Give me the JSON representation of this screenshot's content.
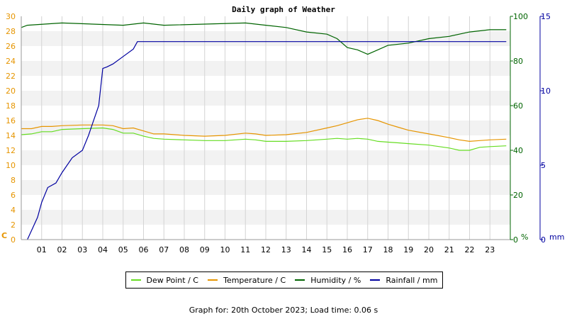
{
  "chart_data": {
    "type": "line",
    "title": "Daily graph of Weather",
    "x_ticks": [
      "01",
      "02",
      "03",
      "04",
      "05",
      "06",
      "07",
      "08",
      "09",
      "10",
      "11",
      "12",
      "13",
      "14",
      "15",
      "16",
      "17",
      "18",
      "19",
      "20",
      "21",
      "22",
      "23"
    ],
    "xlim": [
      0,
      24
    ],
    "axes": {
      "left": {
        "unit": "C",
        "range": [
          0,
          30
        ],
        "ticks": [
          0,
          2,
          4,
          6,
          8,
          10,
          12,
          14,
          16,
          18,
          20,
          22,
          24,
          26,
          28,
          30
        ],
        "color": "#e69500"
      },
      "right1": {
        "unit": "%",
        "range": [
          0,
          100
        ],
        "ticks": [
          0,
          20,
          40,
          60,
          80,
          100
        ],
        "color": "#006400"
      },
      "right2": {
        "unit": "mm",
        "range": [
          0,
          15
        ],
        "ticks": [
          0,
          5,
          10,
          15
        ],
        "color": "#0000a0"
      }
    },
    "grid": true,
    "legend_position": "bottom",
    "series": [
      {
        "name": "Dew Point / C",
        "axis": "left",
        "color": "#66dd22",
        "points": [
          [
            0,
            14.1
          ],
          [
            0.5,
            14.2
          ],
          [
            1,
            14.5
          ],
          [
            1.5,
            14.5
          ],
          [
            2,
            14.8
          ],
          [
            3,
            14.9
          ],
          [
            4,
            15.0
          ],
          [
            4.5,
            14.8
          ],
          [
            5,
            14.3
          ],
          [
            5.5,
            14.3
          ],
          [
            6,
            13.9
          ],
          [
            6.5,
            13.6
          ],
          [
            7,
            13.5
          ],
          [
            8,
            13.4
          ],
          [
            9,
            13.3
          ],
          [
            10,
            13.3
          ],
          [
            11,
            13.5
          ],
          [
            11.5,
            13.4
          ],
          [
            12,
            13.2
          ],
          [
            13,
            13.2
          ],
          [
            14,
            13.3
          ],
          [
            15,
            13.5
          ],
          [
            15.5,
            13.6
          ],
          [
            16,
            13.5
          ],
          [
            16.5,
            13.6
          ],
          [
            17,
            13.5
          ],
          [
            17.5,
            13.2
          ],
          [
            18,
            13.1
          ],
          [
            18.5,
            13.0
          ],
          [
            19,
            12.9
          ],
          [
            20,
            12.7
          ],
          [
            21,
            12.3
          ],
          [
            21.5,
            12.0
          ],
          [
            22,
            12.0
          ],
          [
            22.5,
            12.4
          ],
          [
            23,
            12.5
          ],
          [
            23.8,
            12.6
          ]
        ]
      },
      {
        "name": "Temperature / C",
        "axis": "left",
        "color": "#e69500",
        "points": [
          [
            0,
            14.9
          ],
          [
            0.5,
            14.9
          ],
          [
            1,
            15.2
          ],
          [
            1.5,
            15.2
          ],
          [
            2,
            15.3
          ],
          [
            3,
            15.4
          ],
          [
            4,
            15.4
          ],
          [
            4.5,
            15.3
          ],
          [
            5,
            14.9
          ],
          [
            5.5,
            15.0
          ],
          [
            6,
            14.6
          ],
          [
            6.5,
            14.2
          ],
          [
            7,
            14.2
          ],
          [
            8,
            14.0
          ],
          [
            9,
            13.9
          ],
          [
            10,
            14.0
          ],
          [
            11,
            14.3
          ],
          [
            11.5,
            14.2
          ],
          [
            12,
            14.0
          ],
          [
            13,
            14.1
          ],
          [
            14,
            14.4
          ],
          [
            15,
            15.0
          ],
          [
            15.5,
            15.3
          ],
          [
            16,
            15.7
          ],
          [
            16.5,
            16.1
          ],
          [
            17,
            16.3
          ],
          [
            17.5,
            16.0
          ],
          [
            18,
            15.5
          ],
          [
            18.5,
            15.1
          ],
          [
            19,
            14.7
          ],
          [
            20,
            14.2
          ],
          [
            21,
            13.7
          ],
          [
            21.5,
            13.4
          ],
          [
            22,
            13.2
          ],
          [
            22.5,
            13.3
          ],
          [
            23,
            13.4
          ],
          [
            23.8,
            13.5
          ]
        ]
      },
      {
        "name": "Humidity / %",
        "axis": "right1",
        "color": "#006400",
        "points": [
          [
            0,
            95
          ],
          [
            0.3,
            96
          ],
          [
            2,
            97
          ],
          [
            5,
            96
          ],
          [
            6,
            97
          ],
          [
            7,
            96
          ],
          [
            11,
            97
          ],
          [
            12,
            96
          ],
          [
            13,
            95
          ],
          [
            14,
            93
          ],
          [
            15,
            92
          ],
          [
            15.5,
            90
          ],
          [
            16,
            86
          ],
          [
            16.5,
            85
          ],
          [
            17,
            83
          ],
          [
            17.5,
            85
          ],
          [
            18,
            87
          ],
          [
            19,
            88
          ],
          [
            20,
            90
          ],
          [
            21,
            91
          ],
          [
            22,
            93
          ],
          [
            23,
            94
          ],
          [
            23.8,
            94
          ]
        ]
      },
      {
        "name": "Rainfall / mm",
        "axis": "right2",
        "color": "#0000a0",
        "points": [
          [
            0.3,
            0
          ],
          [
            0.5,
            0.6
          ],
          [
            0.8,
            1.5
          ],
          [
            1,
            2.5
          ],
          [
            1.3,
            3.5
          ],
          [
            1.7,
            3.8
          ],
          [
            2,
            4.5
          ],
          [
            2.5,
            5.5
          ],
          [
            3,
            6.0
          ],
          [
            3.3,
            7.0
          ],
          [
            3.5,
            7.8
          ],
          [
            3.8,
            9.0
          ],
          [
            4,
            11.5
          ],
          [
            4.2,
            11.6
          ],
          [
            4.5,
            11.8
          ],
          [
            5,
            12.3
          ],
          [
            5.5,
            12.8
          ],
          [
            5.7,
            13.3
          ],
          [
            23.8,
            13.3
          ]
        ]
      }
    ]
  },
  "legend": [
    {
      "label": "Dew Point / C",
      "color": "#66dd22"
    },
    {
      "label": "Temperature / C",
      "color": "#e69500"
    },
    {
      "label": "Humidity / %",
      "color": "#006400"
    },
    {
      "label": "Rainfall / mm",
      "color": "#0000a0"
    }
  ],
  "footer": "Graph for: 20th October 2023; Load time: 0.06 s"
}
